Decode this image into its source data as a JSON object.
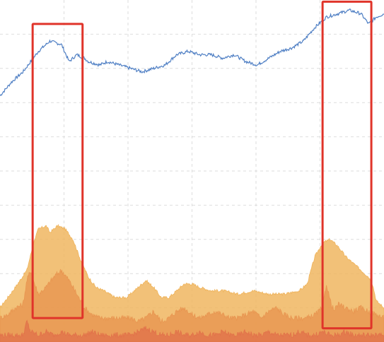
{
  "chart_data": {
    "type": "area",
    "title": "",
    "xlabel": "",
    "ylabel": "",
    "grid": true,
    "legend": "none",
    "x_range": [
      0,
      100
    ],
    "y_range": [
      0,
      100
    ],
    "line_series": {
      "color": "#4f7fc4",
      "x": [
        0,
        3,
        6,
        8,
        10,
        13,
        16,
        18,
        20,
        22,
        23,
        26,
        28,
        31,
        34,
        37,
        40,
        43,
        46,
        49,
        52,
        55,
        58,
        61,
        64,
        67,
        70,
        73,
        76,
        79,
        82,
        85,
        88,
        91,
        94,
        96,
        98,
        100
      ],
      "y": [
        72,
        76,
        79,
        82,
        85,
        88,
        87,
        82,
        84,
        83,
        82,
        81,
        82,
        81,
        80,
        79,
        80,
        81,
        84,
        85,
        84,
        84,
        83,
        84,
        82,
        81,
        83,
        85,
        86,
        88,
        92,
        95,
        96,
        97,
        96,
        93,
        95,
        96
      ]
    },
    "area_series": [
      {
        "name": "",
        "color": "#efb35a",
        "x": [
          0,
          2,
          4,
          7,
          9,
          10,
          12,
          13,
          15,
          17,
          19,
          21,
          23,
          25,
          27,
          30,
          33,
          36,
          38,
          40,
          42,
          44,
          46,
          48,
          50,
          52,
          55,
          58,
          62,
          66,
          70,
          74,
          78,
          80,
          82,
          84,
          86,
          88,
          90,
          92,
          94,
          96,
          97,
          98,
          100
        ],
        "y": [
          10,
          13,
          16,
          21,
          30,
          33,
          34,
          32,
          34,
          33,
          30,
          24,
          19,
          16,
          15,
          13,
          13,
          16,
          18,
          16,
          13,
          13,
          15,
          17,
          17,
          16,
          15,
          15,
          14,
          15,
          14,
          14,
          15,
          17,
          25,
          29,
          30,
          28,
          25,
          23,
          21,
          19,
          17,
          12,
          10
        ]
      },
      {
        "name": "",
        "color": "#e89651",
        "x": [
          0,
          2,
          4,
          6,
          7,
          8,
          9,
          10,
          12,
          14,
          16,
          18,
          20,
          22,
          24,
          26,
          28,
          30,
          32,
          34,
          36,
          38,
          40,
          42,
          44,
          46,
          48,
          50,
          52,
          54,
          56,
          58,
          60,
          62,
          64,
          66,
          68,
          70,
          72,
          74,
          76,
          78,
          80,
          82,
          84,
          85,
          86,
          87,
          88,
          90,
          92,
          94,
          96,
          98,
          100
        ],
        "y": [
          7,
          8,
          10,
          11,
          18,
          21,
          17,
          14,
          16,
          19,
          21,
          18,
          14,
          10,
          8,
          7,
          7,
          7,
          7,
          7,
          6,
          7,
          9,
          6,
          7,
          9,
          10,
          8,
          7,
          8,
          9,
          8,
          7,
          7,
          8,
          9,
          7,
          9,
          10,
          8,
          7,
          7,
          7,
          8,
          10,
          17,
          12,
          9,
          11,
          10,
          9,
          10,
          9,
          8,
          7
        ]
      },
      {
        "name": "",
        "color": "#e2734a",
        "x": [
          0,
          3,
          6,
          7,
          8,
          10,
          12,
          14,
          16,
          18,
          20,
          22,
          24,
          26,
          28,
          30,
          32,
          34,
          36,
          38,
          40,
          42,
          44,
          46,
          48,
          50,
          52,
          54,
          56,
          58,
          60,
          62,
          64,
          66,
          68,
          70,
          72,
          74,
          76,
          78,
          80,
          82,
          84,
          86,
          88,
          90,
          92,
          94,
          96,
          98,
          100
        ],
        "y": [
          2,
          2,
          2,
          6,
          3,
          2,
          3,
          2,
          3,
          2,
          2,
          2,
          3,
          2,
          2,
          2,
          2,
          2,
          3,
          4,
          3,
          2,
          2,
          3,
          2,
          2,
          3,
          2,
          2,
          3,
          2,
          2,
          3,
          2,
          2,
          3,
          2,
          2,
          2,
          3,
          2,
          2,
          3,
          2,
          2,
          3,
          2,
          2,
          2,
          2,
          2
        ]
      }
    ],
    "highlight_boxes": [
      {
        "x_range": [
          8.5,
          21.5
        ],
        "y_range": [
          7,
          93
        ],
        "color": "#e0342a"
      },
      {
        "x_range": [
          84,
          96.7
        ],
        "y_range": [
          4,
          99.5
        ],
        "color": "#e0342a"
      }
    ]
  }
}
